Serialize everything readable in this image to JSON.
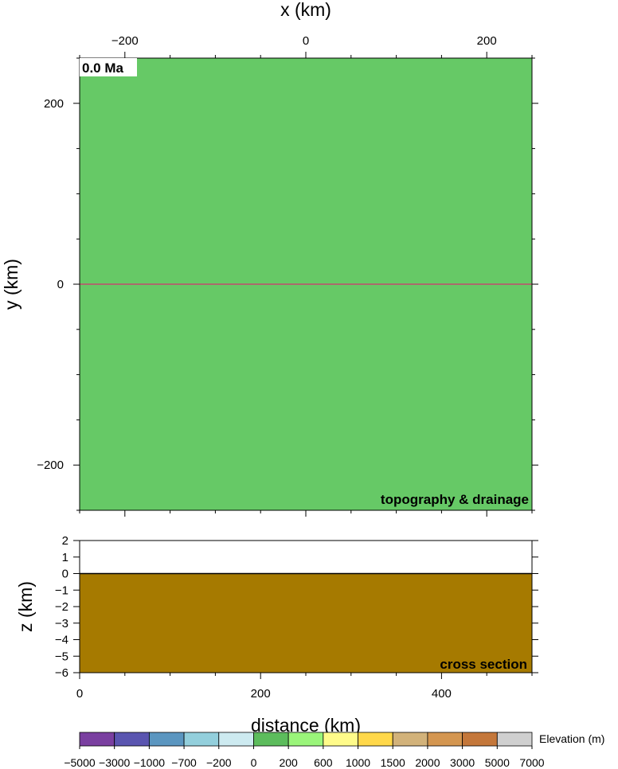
{
  "chart_data": [
    {
      "type": "heatmap",
      "panel": "map",
      "xlabel": "x (km)",
      "ylabel": "y (km)",
      "xlim": [
        -250,
        250
      ],
      "ylim": [
        -250,
        250
      ],
      "xticks": [
        -200,
        0,
        200
      ],
      "yticks": [
        200,
        0,
        -200
      ],
      "minor_tick_step": 50,
      "grid": false,
      "time_label": "0.0 Ma",
      "panel_label": "topography & drainage",
      "surface_color": "#66c966",
      "profile_line": {
        "x": [
          -250,
          250
        ],
        "y": [
          0,
          0
        ],
        "color": "#c24a6e"
      }
    },
    {
      "type": "area",
      "panel": "cross-section",
      "xlabel": "distance (km)",
      "ylabel": "z (km)",
      "xlim": [
        0,
        500
      ],
      "ylim": [
        -6,
        2
      ],
      "xticks": [
        0,
        200,
        400
      ],
      "yticks": [
        2,
        1,
        0,
        -1,
        -2,
        -3,
        -4,
        -5,
        -6
      ],
      "x_minor_tick_step": 50,
      "panel_label": "cross section",
      "surface": {
        "x": [
          0,
          500
        ],
        "z": [
          0,
          0
        ]
      },
      "fill_color": "#a67a00"
    },
    {
      "type": "colorbar",
      "label": "Elevation (m)",
      "tick_labels": [
        "−5000",
        "−3000",
        "−1000",
        "−700",
        "−200",
        "0",
        "200",
        "600",
        "1000",
        "1500",
        "2000",
        "3000",
        "5000",
        "7000"
      ],
      "colors": [
        "#7a3fa0",
        "#5a55b0",
        "#5b96c0",
        "#93cfdc",
        "#cdeaf0",
        "#5cbc5c",
        "#9af57a",
        "#fffb8a",
        "#ffd84a",
        "#d2b27a",
        "#d49650",
        "#c4773a",
        "#cfcfcf"
      ]
    }
  ]
}
